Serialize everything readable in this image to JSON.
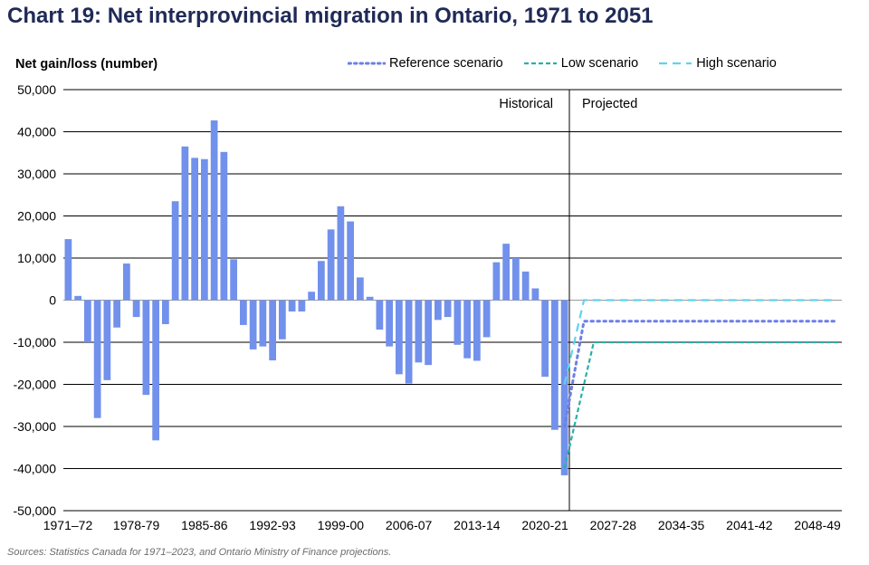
{
  "chart_data": {
    "type": "bar",
    "title": "Chart 19: Net interprovincial migration in Ontario, 1971 to 2051",
    "ylabel": "Net gain/loss (number)",
    "ylim": [
      -50000,
      50000
    ],
    "yticks": [
      50000,
      40000,
      30000,
      20000,
      10000,
      0,
      -10000,
      -20000,
      -30000,
      -40000,
      -50000
    ],
    "ytick_labels": [
      "50,000",
      "40,000",
      "30,000",
      "20,000",
      "10,000",
      "0",
      "-10,000",
      "-20,000",
      "-30,000",
      "-40,000",
      "-50,000"
    ],
    "grid": "horizontal",
    "legend_position": "top-right",
    "categories": [
      "1971–72",
      "1972-73",
      "1973-74",
      "1974-75",
      "1975-76",
      "1976-77",
      "1977-78",
      "1978-79",
      "1979-80",
      "1980-81",
      "1981-82",
      "1982-83",
      "1983-84",
      "1984-85",
      "1985-86",
      "1986-87",
      "1987-88",
      "1988-89",
      "1989-90",
      "1990-91",
      "1991-92",
      "1992-93",
      "1993-94",
      "1994-95",
      "1995-96",
      "1996-97",
      "1997-98",
      "1998-99",
      "1999-00",
      "2000-01",
      "2001-02",
      "2002-03",
      "2003-04",
      "2004-05",
      "2005-06",
      "2006-07",
      "2007-08",
      "2008-09",
      "2009-10",
      "2010-11",
      "2011-12",
      "2012-13",
      "2013-14",
      "2014-15",
      "2015-16",
      "2016-17",
      "2017-18",
      "2018-19",
      "2019-20",
      "2020-21",
      "2021-22",
      "2022-23",
      "2023-24",
      "2024-25",
      "2025-26",
      "2026-27",
      "2027-28",
      "2028-29",
      "2029-30",
      "2030-31",
      "2031-32",
      "2032-33",
      "2033-34",
      "2034-35",
      "2035-36",
      "2036-37",
      "2037-38",
      "2038-39",
      "2039-40",
      "2040-41",
      "2041-42",
      "2042-43",
      "2043-44",
      "2044-45",
      "2045-46",
      "2046-47",
      "2047-48",
      "2048-49",
      "2049-50",
      "2050-51"
    ],
    "xtick_labels": [
      {
        "index": 0,
        "label": "1971–72"
      },
      {
        "index": 7,
        "label": "1978-79"
      },
      {
        "index": 14,
        "label": "1985-86"
      },
      {
        "index": 21,
        "label": "1992-93"
      },
      {
        "index": 28,
        "label": "1999-00"
      },
      {
        "index": 35,
        "label": "2006-07"
      },
      {
        "index": 42,
        "label": "2013-14"
      },
      {
        "index": 49,
        "label": "2020-21"
      },
      {
        "index": 56,
        "label": "2027-28"
      },
      {
        "index": 63,
        "label": "2034-35"
      },
      {
        "index": 70,
        "label": "2041-42"
      },
      {
        "index": 77,
        "label": "2048-49"
      }
    ],
    "historical_values": [
      14500,
      1000,
      -10000,
      -28000,
      -19000,
      -6500,
      8700,
      -4000,
      -22500,
      -33300,
      -5700,
      23500,
      36500,
      33800,
      33500,
      42700,
      35200,
      9700,
      -5900,
      -11700,
      -11000,
      -14300,
      -9300,
      -2700,
      -2700,
      2000,
      9300,
      16800,
      22300,
      18700,
      5400,
      800,
      -7000,
      -11000,
      -17600,
      -19800,
      -14800,
      -15400,
      -4700,
      -4000,
      -10600,
      -13800,
      -14400,
      -8800,
      9000,
      13400,
      10000,
      6800,
      2800,
      -18200,
      -30800,
      -41600
    ],
    "divider_after_index": 51,
    "annotations": {
      "left": "Historical",
      "right": "Projected"
    },
    "series": [
      {
        "name": "Reference scenario",
        "color": "#6e7fe6",
        "style": "dotted",
        "points": [
          {
            "x": 51,
            "y": -30000
          },
          {
            "x": 53,
            "y": -5000
          },
          {
            "x": 79,
            "y": -5000
          }
        ]
      },
      {
        "name": "Low scenario",
        "color": "#28b0a8",
        "style": "dashed",
        "points": [
          {
            "x": 51,
            "y": -40000
          },
          {
            "x": 54,
            "y": -10000
          },
          {
            "x": 79,
            "y": -10000
          }
        ]
      },
      {
        "name": "High scenario",
        "color": "#5fd3ee",
        "style": "longdash",
        "points": [
          {
            "x": 51,
            "y": -20000
          },
          {
            "x": 53,
            "y": 0
          },
          {
            "x": 79,
            "y": 0
          }
        ]
      }
    ],
    "bar_color": "#7291ec"
  },
  "source_note": "Sources: Statistics Canada for 1971–2023, and Ontario Ministry of Finance projections."
}
